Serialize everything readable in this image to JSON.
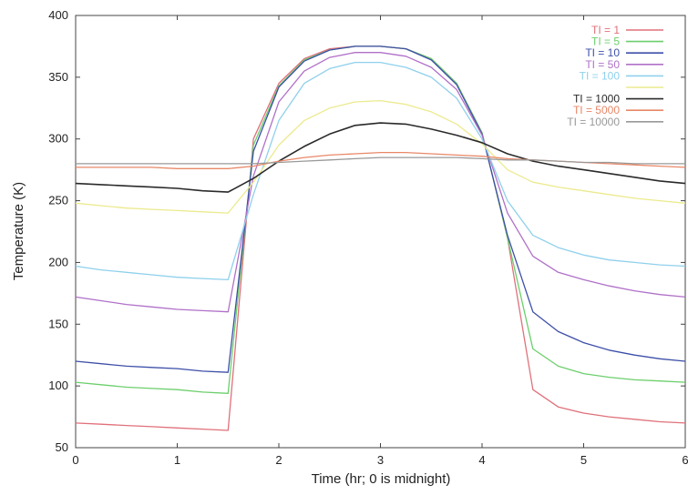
{
  "chart_data": {
    "type": "line",
    "xlabel": "Time (hr; 0 is midnight)",
    "ylabel": "Temperature (K)",
    "xlim": [
      0,
      6
    ],
    "ylim": [
      50,
      400
    ],
    "x_ticks": [
      0,
      1,
      2,
      3,
      4,
      5,
      6
    ],
    "y_ticks": [
      50,
      100,
      150,
      200,
      250,
      300,
      350,
      400
    ],
    "grid": false,
    "legend_position": "top-right",
    "x": [
      0,
      0.25,
      0.5,
      0.75,
      1.0,
      1.25,
      1.5,
      1.75,
      2.0,
      2.25,
      2.5,
      2.75,
      3.0,
      3.25,
      3.5,
      3.75,
      4.0,
      4.25,
      4.5,
      4.75,
      5.0,
      5.25,
      5.5,
      5.75,
      6.0
    ],
    "series": [
      {
        "name": "TI = 1",
        "color": "#e0707a",
        "values": [
          70,
          69,
          68,
          67,
          66,
          65,
          64,
          300,
          345,
          365,
          373,
          375,
          375,
          373,
          365,
          345,
          305,
          220,
          97,
          83,
          78,
          75,
          73,
          71,
          70
        ]
      },
      {
        "name": "TI = 5",
        "color": "#6ccf6c",
        "values": [
          103,
          101,
          99,
          98,
          97,
          95,
          94,
          295,
          343,
          364,
          372,
          375,
          375,
          373,
          365,
          345,
          305,
          220,
          130,
          116,
          110,
          107,
          105,
          104,
          103
        ]
      },
      {
        "name": "TI = 10",
        "color": "#3d4fa8",
        "values": [
          120,
          118,
          116,
          115,
          114,
          112,
          111,
          290,
          342,
          363,
          372,
          375,
          375,
          373,
          364,
          344,
          304,
          222,
          160,
          144,
          135,
          129,
          125,
          122,
          120
        ]
      },
      {
        "name": "TI = 50",
        "color": "#b070c8",
        "values": [
          172,
          169,
          166,
          164,
          162,
          161,
          160,
          270,
          330,
          355,
          366,
          370,
          370,
          367,
          358,
          340,
          303,
          240,
          205,
          192,
          186,
          181,
          177,
          174,
          172
        ]
      },
      {
        "name": "TI = 100",
        "color": "#8fd0ec",
        "values": [
          197,
          194,
          192,
          190,
          188,
          187,
          186,
          255,
          315,
          345,
          357,
          362,
          362,
          358,
          350,
          333,
          300,
          250,
          222,
          212,
          206,
          202,
          200,
          198,
          197
        ]
      },
      {
        "name": "",
        "color": "#ecea8e",
        "values": [
          248,
          246,
          244,
          243,
          242,
          241,
          240,
          265,
          295,
          315,
          325,
          330,
          331,
          328,
          322,
          312,
          296,
          275,
          265,
          261,
          258,
          255,
          252,
          250,
          248
        ]
      },
      {
        "name": "TI = 1000",
        "color": "#2a2a2a",
        "values": [
          264,
          263,
          262,
          261,
          260,
          258,
          257,
          268,
          282,
          294,
          304,
          311,
          313,
          312,
          308,
          303,
          297,
          288,
          282,
          278,
          275,
          272,
          269,
          266,
          264
        ]
      },
      {
        "name": "TI = 5000",
        "color": "#e88868",
        "values": [
          277,
          277,
          277,
          277,
          276,
          276,
          276,
          278,
          282,
          285,
          287,
          288,
          289,
          289,
          288,
          287,
          286,
          284,
          283,
          282,
          281,
          280,
          279,
          278,
          277
        ]
      },
      {
        "name": "TI = 10000",
        "color": "#999999",
        "values": [
          280,
          280,
          280,
          280,
          280,
          280,
          280,
          280,
          281,
          282,
          283,
          284,
          285,
          285,
          285,
          285,
          284,
          283,
          283,
          282,
          281,
          281,
          280,
          280,
          280
        ]
      }
    ]
  }
}
